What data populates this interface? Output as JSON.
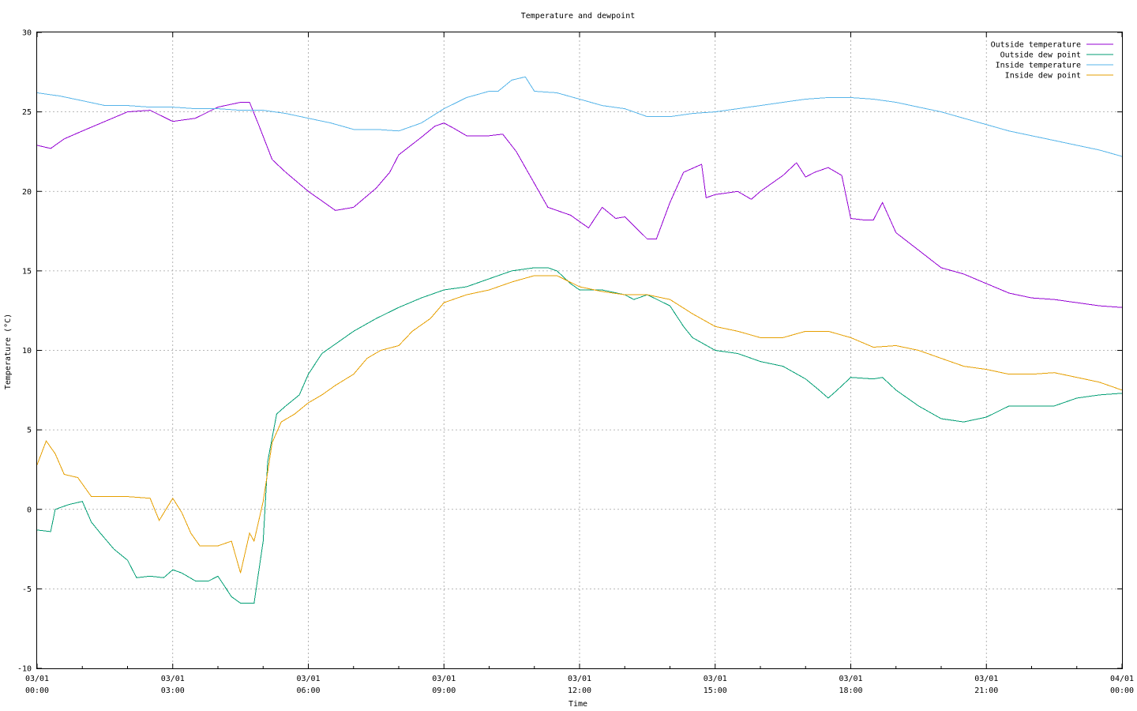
{
  "chart_data": {
    "type": "line",
    "title": "Temperature and dewpoint",
    "xlabel": "Time",
    "ylabel": "Temperature (°C)",
    "ylim": [
      -10,
      30
    ],
    "yticks": [
      -10,
      -5,
      0,
      5,
      10,
      15,
      20,
      25,
      30
    ],
    "xlim_hours": [
      0,
      24
    ],
    "xticks": [
      {
        "hour": 0,
        "line1": "03/01",
        "line2": "00:00"
      },
      {
        "hour": 3,
        "line1": "03/01",
        "line2": "03:00"
      },
      {
        "hour": 6,
        "line1": "03/01",
        "line2": "06:00"
      },
      {
        "hour": 9,
        "line1": "03/01",
        "line2": "09:00"
      },
      {
        "hour": 12,
        "line1": "03/01",
        "line2": "12:00"
      },
      {
        "hour": 15,
        "line1": "03/01",
        "line2": "15:00"
      },
      {
        "hour": 18,
        "line1": "03/01",
        "line2": "18:00"
      },
      {
        "hour": 21,
        "line1": "03/01",
        "line2": "21:00"
      },
      {
        "hour": 24,
        "line1": "04/01",
        "line2": "00:00"
      }
    ],
    "grid": true,
    "legend_position": "top-right",
    "series": [
      {
        "name": "Outside temperature",
        "color": "#9400d3",
        "x": [
          0,
          0.3,
          0.6,
          1,
          1.5,
          2,
          2.5,
          3,
          3.5,
          4,
          4.5,
          4.7,
          4.9,
          5.2,
          5.5,
          6,
          6.3,
          6.6,
          7,
          7.5,
          7.8,
          8,
          8.5,
          8.8,
          9,
          9.2,
          9.5,
          10,
          10.3,
          10.6,
          11,
          11.3,
          11.8,
          12.2,
          12.5,
          12.8,
          13,
          13.5,
          13.7,
          14,
          14.3,
          14.7,
          14.8,
          15,
          15.5,
          15.8,
          16,
          16.5,
          16.8,
          17,
          17.2,
          17.5,
          17.8,
          18,
          18.3,
          18.5,
          18.7,
          19,
          19.5,
          20,
          20.5,
          21,
          21.5,
          22,
          22.5,
          23,
          23.5,
          24
        ],
        "y": [
          22.9,
          22.7,
          23.3,
          23.8,
          24.4,
          25.0,
          25.1,
          24.4,
          24.6,
          25.3,
          25.6,
          25.6,
          24.2,
          22.0,
          21.2,
          20.0,
          19.4,
          18.8,
          19.0,
          20.2,
          21.2,
          22.3,
          23.4,
          24.1,
          24.3,
          24.0,
          23.5,
          23.5,
          23.6,
          22.5,
          20.5,
          19.0,
          18.5,
          17.7,
          19.0,
          18.3,
          18.4,
          17.0,
          17.0,
          19.3,
          21.2,
          21.7,
          19.6,
          19.8,
          20.0,
          19.5,
          20.0,
          21.0,
          21.8,
          20.9,
          21.2,
          21.5,
          21.0,
          18.3,
          18.2,
          18.2,
          19.3,
          17.4,
          16.3,
          15.2,
          14.8,
          14.2,
          13.6,
          13.3,
          13.2,
          13.0,
          12.8,
          12.7
        ]
      },
      {
        "name": "Outside dew point",
        "color": "#009e73",
        "x": [
          0,
          0.3,
          0.4,
          0.7,
          1,
          1.2,
          1.4,
          1.7,
          2,
          2.2,
          2.5,
          2.8,
          3,
          3.2,
          3.5,
          3.8,
          4,
          4.3,
          4.5,
          4.7,
          4.8,
          5,
          5.1,
          5.3,
          5.5,
          5.8,
          6,
          6.3,
          6.5,
          7,
          7.5,
          8,
          8.5,
          9,
          9.5,
          10,
          10.5,
          11,
          11.3,
          11.5,
          11.8,
          12,
          12.5,
          13,
          13.2,
          13.5,
          14,
          14.3,
          14.5,
          15,
          15.5,
          16,
          16.5,
          17,
          17.3,
          17.5,
          17.7,
          18,
          18.5,
          18.7,
          19,
          19.5,
          20,
          20.5,
          21,
          21.5,
          22,
          22.5,
          23,
          23.5,
          24
        ],
        "y": [
          -1.3,
          -1.4,
          0.0,
          0.3,
          0.5,
          -0.8,
          -1.5,
          -2.5,
          -3.2,
          -4.3,
          -4.2,
          -4.3,
          -3.8,
          -4.0,
          -4.5,
          -4.5,
          -4.2,
          -5.5,
          -5.9,
          -5.9,
          -5.9,
          -2.0,
          3.0,
          6.0,
          6.5,
          7.2,
          8.5,
          9.8,
          10.2,
          11.2,
          12.0,
          12.7,
          13.3,
          13.8,
          14.0,
          14.5,
          15.0,
          15.2,
          15.2,
          15.0,
          14.2,
          13.8,
          13.8,
          13.5,
          13.2,
          13.5,
          12.8,
          11.5,
          10.8,
          10.0,
          9.8,
          9.3,
          9.0,
          8.2,
          7.5,
          7.0,
          7.5,
          8.3,
          8.2,
          8.3,
          7.5,
          6.5,
          5.7,
          5.5,
          5.8,
          6.5,
          6.5,
          6.5,
          7.0,
          7.2,
          7.3
        ]
      },
      {
        "name": "Inside temperature",
        "color": "#56b4e9",
        "x": [
          0,
          0.5,
          1,
          1.5,
          2,
          2.5,
          3,
          3.5,
          4,
          4.5,
          5,
          5.5,
          6,
          6.5,
          7,
          7.5,
          8,
          8.5,
          9,
          9.5,
          10,
          10.2,
          10.5,
          10.8,
          11,
          11.5,
          12,
          12.5,
          13,
          13.5,
          14,
          14.5,
          15,
          15.5,
          16,
          16.5,
          17,
          17.5,
          18,
          18.5,
          19,
          19.5,
          20,
          20.5,
          21,
          21.5,
          22,
          22.5,
          23,
          23.5,
          24
        ],
        "y": [
          26.2,
          26.0,
          25.7,
          25.4,
          25.4,
          25.3,
          25.3,
          25.2,
          25.2,
          25.1,
          25.1,
          24.9,
          24.6,
          24.3,
          23.9,
          23.9,
          23.8,
          24.3,
          25.2,
          25.9,
          26.3,
          26.3,
          27.0,
          27.2,
          26.3,
          26.2,
          25.8,
          25.4,
          25.2,
          24.7,
          24.7,
          24.9,
          25.0,
          25.2,
          25.4,
          25.6,
          25.8,
          25.9,
          25.9,
          25.8,
          25.6,
          25.3,
          25.0,
          24.6,
          24.2,
          23.8,
          23.5,
          23.2,
          22.9,
          22.6,
          22.2
        ]
      },
      {
        "name": "Inside dew point",
        "color": "#e69f00",
        "x": [
          0,
          0.2,
          0.4,
          0.6,
          0.9,
          1.2,
          1.5,
          2,
          2.5,
          2.7,
          3,
          3.2,
          3.4,
          3.6,
          3.8,
          4,
          4.3,
          4.5,
          4.7,
          4.8,
          5,
          5.2,
          5.4,
          5.7,
          6,
          6.3,
          6.6,
          7,
          7.3,
          7.6,
          8,
          8.3,
          8.7,
          9,
          9.5,
          10,
          10.5,
          11,
          11.5,
          12,
          12.5,
          13,
          13.5,
          14,
          14.5,
          15,
          15.5,
          16,
          16.5,
          17,
          17.5,
          18,
          18.5,
          19,
          19.5,
          20,
          20.5,
          21,
          21.5,
          22,
          22.5,
          23,
          23.5,
          24
        ],
        "y": [
          2.8,
          4.3,
          3.5,
          2.2,
          2.0,
          0.8,
          0.8,
          0.8,
          0.7,
          -0.7,
          0.7,
          -0.2,
          -1.5,
          -2.3,
          -2.3,
          -2.3,
          -2.0,
          -4.0,
          -1.5,
          -2.0,
          0.5,
          4.2,
          5.5,
          6.0,
          6.7,
          7.2,
          7.8,
          8.5,
          9.5,
          10.0,
          10.3,
          11.2,
          12.0,
          13.0,
          13.5,
          13.8,
          14.3,
          14.7,
          14.7,
          14.0,
          13.7,
          13.5,
          13.5,
          13.2,
          12.3,
          11.5,
          11.2,
          10.8,
          10.8,
          11.2,
          11.2,
          10.8,
          10.2,
          10.3,
          10.0,
          9.5,
          9.0,
          8.8,
          8.5,
          8.5,
          8.6,
          8.3,
          8.0,
          7.5
        ]
      }
    ]
  }
}
